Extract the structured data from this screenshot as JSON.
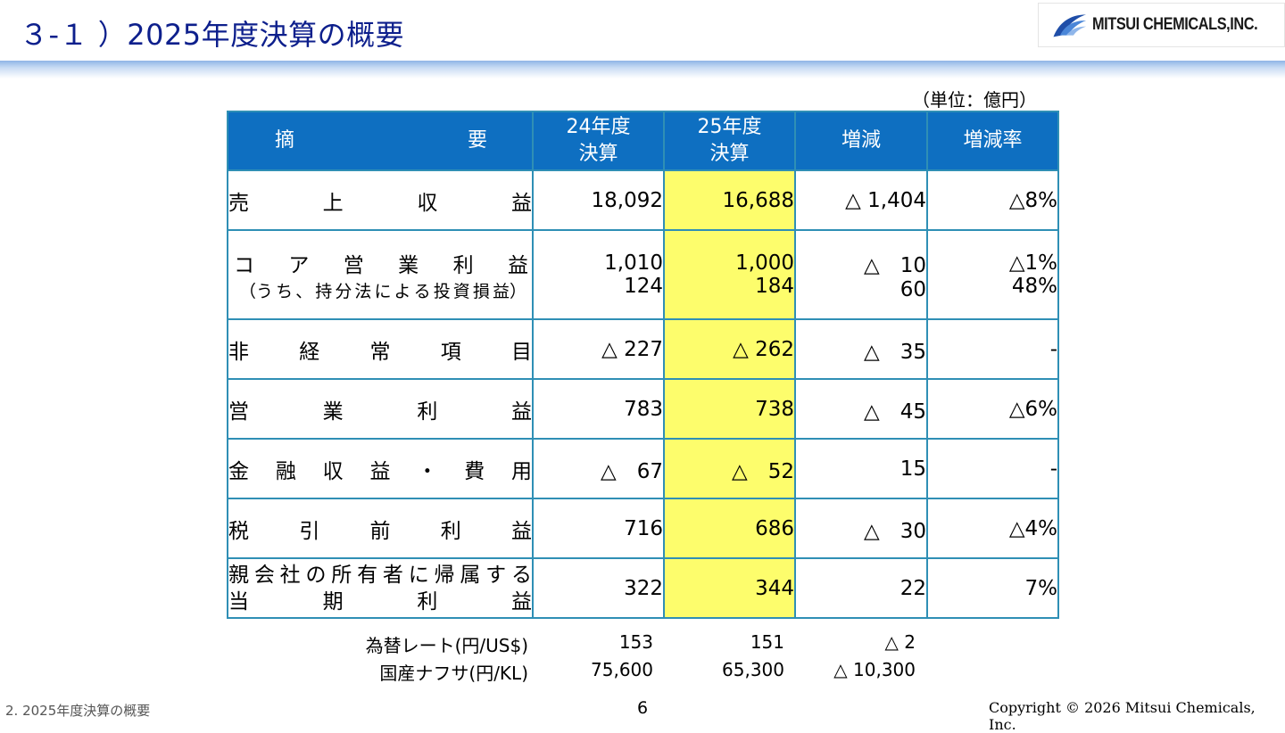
{
  "title": "３-１ ）2025年度決算の概要",
  "logo": {
    "text": "MITSUI CHEMICALS,INC."
  },
  "unit_note": "（単位：億円）",
  "table": {
    "header": {
      "summary_chars": [
        "摘",
        "要"
      ],
      "fy24_line1": "24年度",
      "fy24_line2": "決算",
      "fy25_line1": "25年度",
      "fy25_line2": "決算",
      "change": "増減",
      "change_rate": "増減率"
    },
    "rows": [
      {
        "label_chars": [
          "売",
          "上",
          "収",
          "益"
        ],
        "fy24": "18,092",
        "fy25": "16,688",
        "change": "△ 1,404",
        "rate": "△8%"
      },
      {
        "label_chars": [
          "コ",
          "ア",
          "営",
          "業",
          "利",
          "益"
        ],
        "fy24": "1,010",
        "fy25": "1,000",
        "change": "△　10",
        "rate": "△1%",
        "sub_label_chars": [
          "（う",
          "ち",
          "、",
          "持",
          "分",
          "法",
          "に",
          "よ",
          "る",
          "投",
          "資",
          "損",
          "益）"
        ],
        "sub_fy24": "124",
        "sub_fy25": "184",
        "sub_change": "60",
        "sub_rate": "48%"
      },
      {
        "label_chars": [
          "非",
          "経",
          "常",
          "項",
          "目"
        ],
        "fy24": "△ 227",
        "fy25": "△ 262",
        "change": "△　35",
        "rate": "-"
      },
      {
        "label_chars": [
          "営",
          "業",
          "利",
          "益"
        ],
        "fy24": "783",
        "fy25": "738",
        "change": "△　45",
        "rate": "△6%"
      },
      {
        "label_chars": [
          "金",
          "融",
          "収",
          "益",
          "・",
          "費",
          "用"
        ],
        "fy24": "△　67",
        "fy25": "△　52",
        "change": "15",
        "rate": "-"
      },
      {
        "label_chars": [
          "税",
          "引",
          "前",
          "利",
          "益"
        ],
        "fy24": "716",
        "fy25": "686",
        "change": "△　30",
        "rate": "△4%"
      },
      {
        "label_line1_chars": [
          "親",
          "会",
          "社",
          "の",
          "所",
          "有",
          "者",
          "に",
          "帰",
          "属",
          "す",
          "る"
        ],
        "label_line2_chars": [
          "当",
          "期",
          "利",
          "益"
        ],
        "fy24": "322",
        "fy25": "344",
        "change": "22",
        "rate": "7%"
      }
    ]
  },
  "exchange": [
    {
      "label": "為替レート(円/US$)",
      "fy24": "153",
      "fy25": "151",
      "change": "△ 2"
    },
    {
      "label": "国産ナフサ(円/KL)",
      "fy24": "75,600",
      "fy25": "65,300",
      "change": "△ 10,300"
    }
  ],
  "footer": {
    "section": "2.  2025年度決算の概要",
    "page": "6",
    "copyright": "Copyright © 2026 Mitsui Chemicals, Inc."
  },
  "colors": {
    "header_blue": "#0e6fc1",
    "highlight_yellow": "#fdfd6c",
    "border": "#2f8fb5",
    "title": "#0d1f8c"
  }
}
